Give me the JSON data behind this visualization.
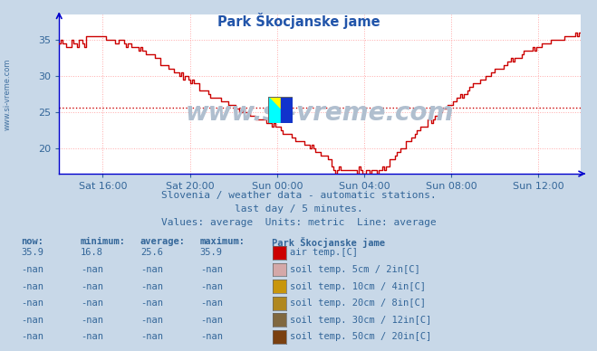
{
  "title": "Park Škocjanske jame",
  "title_color": "#2255aa",
  "bg_color": "#c8d8e8",
  "plot_bg_color": "#ffffff",
  "line_color": "#cc0000",
  "grid_color": "#ffaaaa",
  "axis_color": "#0000cc",
  "text_color": "#336699",
  "avg_line_color": "#cc0000",
  "avg_line_value": 25.6,
  "ylim": [
    16.5,
    38.5
  ],
  "yticks": [
    20,
    25,
    30,
    35
  ],
  "xlabel_ticks": [
    "Sat 16:00",
    "Sat 20:00",
    "Sun 00:00",
    "Sun 04:00",
    "Sun 08:00",
    "Sun 12:00"
  ],
  "subtitle1": "Slovenia / weather data - automatic stations.",
  "subtitle2": "last day / 5 minutes.",
  "subtitle3": "Values: average  Units: metric  Line: average",
  "watermark": "www.si-vreme.com",
  "legend_header": "Park Škocjanske jame",
  "legend_rows": [
    {
      "now": "35.9",
      "min": "16.8",
      "avg": "25.6",
      "max": "35.9",
      "color": "#cc0000",
      "label": "air temp.[C]"
    },
    {
      "now": "-nan",
      "min": "-nan",
      "avg": "-nan",
      "max": "-nan",
      "color": "#d4a8a8",
      "label": "soil temp. 5cm / 2in[C]"
    },
    {
      "now": "-nan",
      "min": "-nan",
      "avg": "-nan",
      "max": "-nan",
      "color": "#c8960c",
      "label": "soil temp. 10cm / 4in[C]"
    },
    {
      "now": "-nan",
      "min": "-nan",
      "avg": "-nan",
      "max": "-nan",
      "color": "#b08820",
      "label": "soil temp. 20cm / 8in[C]"
    },
    {
      "now": "-nan",
      "min": "-nan",
      "avg": "-nan",
      "max": "-nan",
      "color": "#806840",
      "label": "soil temp. 30cm / 12in[C]"
    },
    {
      "now": "-nan",
      "min": "-nan",
      "avg": "-nan",
      "max": "-nan",
      "color": "#7a4010",
      "label": "soil temp. 50cm / 20in[C]"
    }
  ],
  "watermark_color": "#b0bfcf",
  "n_points": 288,
  "tick_positions": [
    24,
    72,
    120,
    168,
    216,
    264
  ]
}
